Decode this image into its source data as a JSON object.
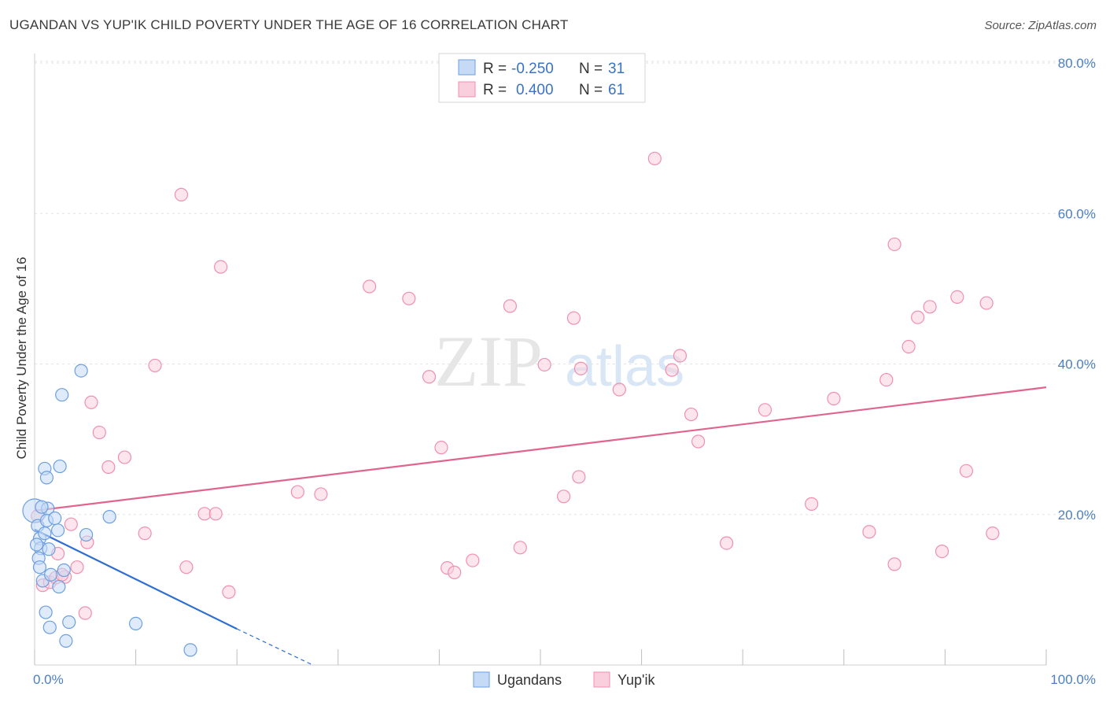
{
  "title": "UGANDAN VS YUP'IK CHILD POVERTY UNDER THE AGE OF 16 CORRELATION CHART",
  "source": "Source: ZipAtlas.com",
  "watermark": {
    "zip": "ZIP",
    "atlas": "atlas"
  },
  "legend": {
    "r_label": "R =",
    "n_label": "N =",
    "ugandans": {
      "r": "-0.250",
      "n": "31"
    },
    "yupik": {
      "r": "0.400",
      "n": "61"
    }
  },
  "bottom_legend": {
    "ugandans": "Ugandans",
    "yupik": "Yup'ik"
  },
  "chart_data": {
    "type": "scatter",
    "xlabel": "",
    "ylabel": "Child Poverty Under the Age of 16",
    "xlim": [
      0,
      100
    ],
    "ylim": [
      0,
      80
    ],
    "x_tick_labels": [
      "0.0%",
      "100.0%"
    ],
    "y_ticks": [
      20,
      40,
      60,
      80
    ],
    "y_tick_labels": [
      "20.0%",
      "40.0%",
      "60.0%",
      "80.0%"
    ],
    "colors": {
      "ugandans": "#6b9fe0",
      "yupik": "#f08fb0",
      "ugandans_line": "#2f6fd0",
      "yupik_line": "#e0648e"
    },
    "series": [
      {
        "name": "Ugandans",
        "points": [
          [
            0.0,
            20.5
          ],
          [
            0.3,
            18.5
          ],
          [
            0.5,
            16.8
          ],
          [
            0.6,
            15.5
          ],
          [
            0.4,
            14.2
          ],
          [
            0.5,
            13.0
          ],
          [
            0.8,
            11.2
          ],
          [
            1.0,
            17.5
          ],
          [
            1.2,
            19.2
          ],
          [
            1.4,
            15.4
          ],
          [
            1.0,
            26.1
          ],
          [
            1.2,
            24.9
          ],
          [
            1.3,
            20.8
          ],
          [
            1.1,
            7.0
          ],
          [
            1.5,
            5.0
          ],
          [
            2.0,
            19.5
          ],
          [
            2.3,
            17.9
          ],
          [
            2.5,
            26.4
          ],
          [
            2.7,
            35.9
          ],
          [
            2.9,
            12.6
          ],
          [
            2.4,
            10.4
          ],
          [
            3.1,
            3.2
          ],
          [
            3.4,
            5.7
          ],
          [
            4.6,
            39.1
          ],
          [
            5.1,
            17.3
          ],
          [
            7.4,
            19.7
          ],
          [
            10.0,
            5.5
          ],
          [
            15.4,
            2.0
          ],
          [
            0.2,
            16.0
          ],
          [
            0.7,
            21.0
          ],
          [
            1.6,
            12.0
          ]
        ]
      },
      {
        "name": "Yup'ik",
        "points": [
          [
            0.3,
            19.8
          ],
          [
            0.8,
            10.6
          ],
          [
            1.5,
            11.0
          ],
          [
            2.1,
            11.6
          ],
          [
            2.3,
            14.8
          ],
          [
            3.0,
            11.7
          ],
          [
            3.6,
            18.7
          ],
          [
            4.2,
            13.0
          ],
          [
            5.0,
            6.9
          ],
          [
            5.2,
            16.3
          ],
          [
            5.6,
            34.9
          ],
          [
            6.4,
            30.9
          ],
          [
            7.3,
            26.3
          ],
          [
            8.9,
            27.6
          ],
          [
            10.9,
            17.5
          ],
          [
            11.9,
            39.8
          ],
          [
            14.5,
            62.5
          ],
          [
            15.0,
            13.0
          ],
          [
            16.8,
            20.1
          ],
          [
            17.9,
            20.1
          ],
          [
            18.4,
            52.9
          ],
          [
            19.2,
            9.7
          ],
          [
            26.0,
            23.0
          ],
          [
            28.3,
            22.7
          ],
          [
            33.1,
            50.3
          ],
          [
            37.0,
            48.7
          ],
          [
            39.0,
            38.3
          ],
          [
            40.2,
            28.9
          ],
          [
            40.8,
            12.9
          ],
          [
            41.5,
            12.3
          ],
          [
            43.3,
            13.9
          ],
          [
            47.0,
            47.7
          ],
          [
            48.0,
            15.6
          ],
          [
            50.4,
            39.9
          ],
          [
            52.3,
            22.4
          ],
          [
            53.3,
            46.1
          ],
          [
            53.8,
            25.0
          ],
          [
            54.0,
            39.4
          ],
          [
            57.8,
            36.6
          ],
          [
            61.3,
            67.3
          ],
          [
            63.0,
            39.2
          ],
          [
            63.8,
            41.1
          ],
          [
            64.9,
            33.3
          ],
          [
            65.6,
            29.7
          ],
          [
            68.4,
            16.2
          ],
          [
            72.2,
            33.9
          ],
          [
            76.8,
            21.4
          ],
          [
            79.0,
            35.4
          ],
          [
            82.5,
            17.7
          ],
          [
            84.2,
            37.9
          ],
          [
            85.0,
            55.9
          ],
          [
            86.4,
            42.3
          ],
          [
            87.3,
            46.2
          ],
          [
            88.5,
            47.6
          ],
          [
            89.7,
            15.1
          ],
          [
            91.2,
            48.9
          ],
          [
            92.1,
            25.8
          ],
          [
            94.7,
            17.5
          ],
          [
            94.1,
            48.1
          ],
          [
            85.0,
            13.4
          ],
          [
            2.7,
            12.0
          ]
        ]
      }
    ],
    "trendlines": [
      {
        "name": "Ugandans",
        "solid": [
          [
            0,
            18.0
          ],
          [
            20,
            4.8
          ]
        ],
        "dashed": [
          [
            20,
            4.8
          ],
          [
            27.5,
            0.0
          ]
        ]
      },
      {
        "name": "Yup'ik",
        "solid": [
          [
            0,
            20.5
          ],
          [
            100,
            36.9
          ]
        ]
      }
    ]
  }
}
